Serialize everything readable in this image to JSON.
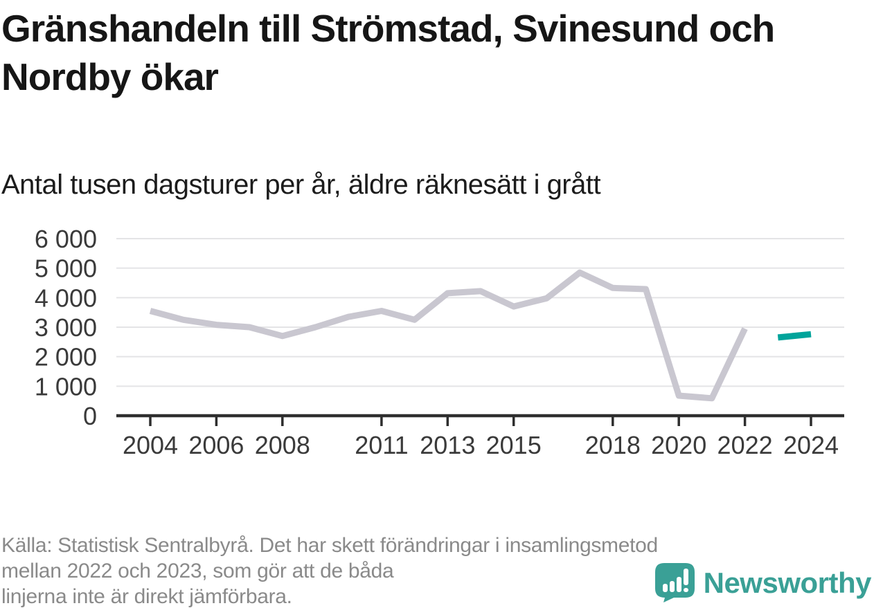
{
  "header": {
    "title": "Gränshandeln till Strömstad, Svinesund och Nordby ökar",
    "subtitle": "Antal tusen dagsturer per år, äldre räknesätt i grått"
  },
  "chart_data": {
    "type": "line",
    "title": "Gränshandeln till Strömstad, Svinesund och Nordby ökar",
    "ylabel_note": "Antal tusen dagsturer per år",
    "xlim": [
      2004,
      2024
    ],
    "ylim": [
      0,
      6000
    ],
    "grid": "horizontal",
    "legend": "none",
    "xticks": [
      2004,
      2006,
      2008,
      2011,
      2013,
      2015,
      2018,
      2020,
      2022,
      2024
    ],
    "yticks": [
      0,
      1000,
      2000,
      3000,
      4000,
      5000,
      6000
    ],
    "ytick_labels": [
      "0",
      "1 000",
      "2 000",
      "3 000",
      "4 000",
      "5 000",
      "6 000"
    ],
    "series": [
      {
        "name": "äldre räknesätt (grå linje)",
        "color": "#c9c7d0",
        "x": [
          2004,
          2005,
          2006,
          2007,
          2008,
          2009,
          2010,
          2011,
          2012,
          2013,
          2014,
          2015,
          2016,
          2017,
          2018,
          2019,
          2020,
          2021,
          2022
        ],
        "values": [
          3550,
          3250,
          3080,
          3000,
          2700,
          3000,
          3350,
          3550,
          3250,
          4150,
          4220,
          3700,
          3980,
          4850,
          4330,
          4290,
          680,
          590,
          2950
        ]
      },
      {
        "name": "nytt räknesätt (grön linje)",
        "color": "#00a49b",
        "x": [
          2023,
          2024
        ],
        "values": [
          2650,
          2760
        ]
      }
    ]
  },
  "footer": {
    "lines": [
      "Källa: Statistisk Sentralbyrå. Det har skett förändringar i insamlingsmetod",
      "mellan 2022 och 2023, som gör att de båda",
      "linjerna inte är direkt jämförbara."
    ]
  },
  "logo": {
    "brand": "Newsworthy",
    "icon": "newsworthy-chart-bubble-icon",
    "color": "#3aa096"
  },
  "colors": {
    "background": "#ffffff",
    "title": "#161616",
    "old_series": "#c9c7d0",
    "new_series": "#00a49b",
    "gridline": "#e4e4e6",
    "axis": "#2e2e2e",
    "footer_text": "#8a8a8a"
  }
}
